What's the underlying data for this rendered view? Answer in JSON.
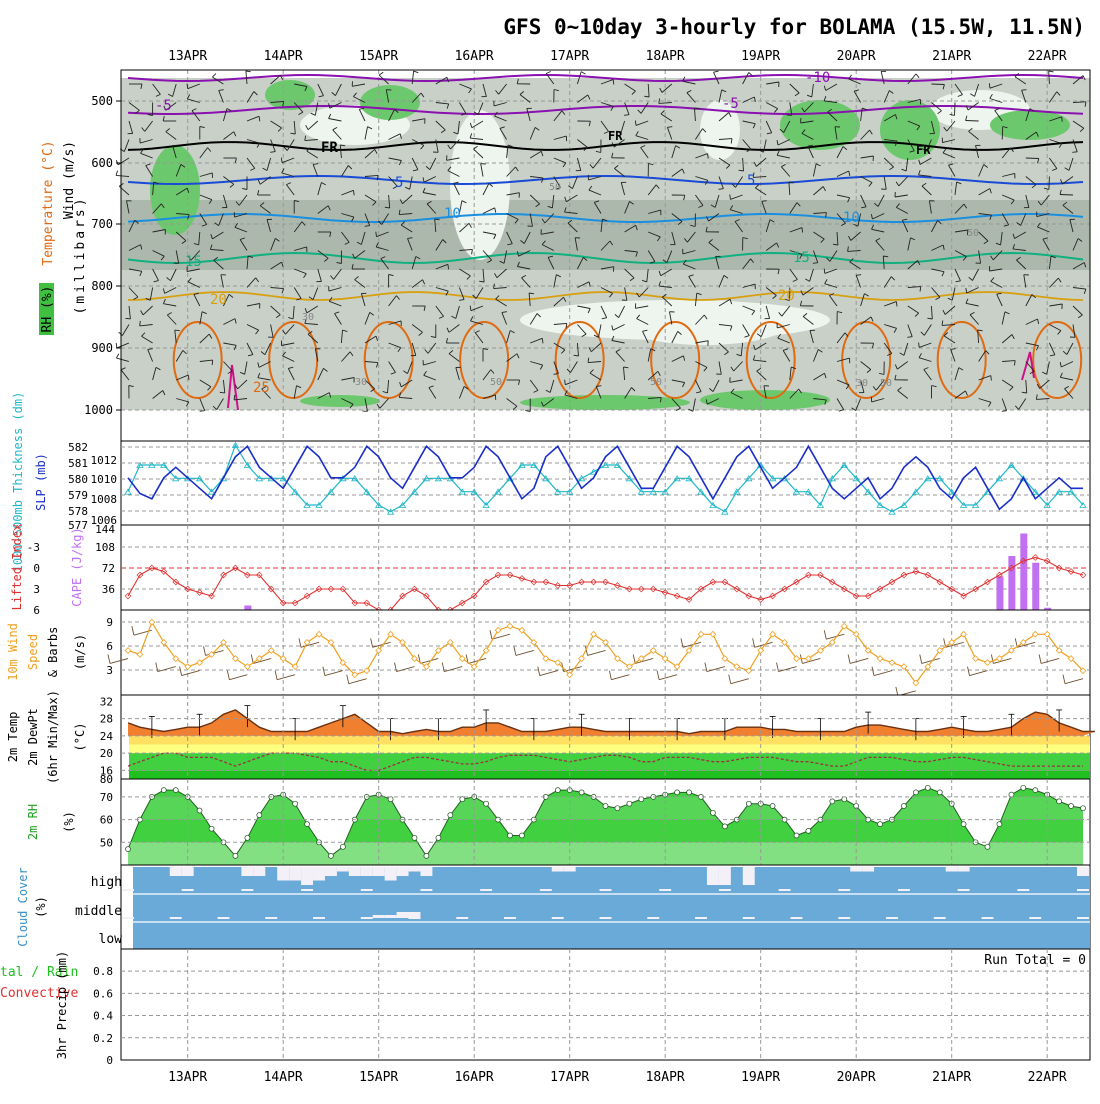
{
  "title": "GFS 0~10day 3-hourly for BOLAMA (15.5W, 11.5N)",
  "colors": {
    "frame": "#000000",
    "grid": "#999999",
    "rh_light": "#c8d0c8",
    "rh_mid": "#9aa89a",
    "rh_high": "#6cc86c",
    "rh_white": "#eef4ee",
    "temp_purple": "#8a10b0",
    "temp_black": "#000000",
    "temp_blue": "#1a4ad6",
    "temp_lightblue": "#1a8fe0",
    "temp_teal": "#10b080",
    "temp_gold": "#d8a010",
    "temp_orange": "#e06a10",
    "temp_magenta": "#d0108a",
    "slp": "#1a2fc8",
    "thickness": "#20b8c8",
    "lifted": "#e03030",
    "cape": "#c070f0",
    "wind_speed": "#f0a020",
    "barb": "#705030",
    "temp_fill": "#f08030",
    "dewpt_line": "#a03040",
    "rh2m_fill": "#40d040",
    "cloud": "#6aaad8",
    "precip_total": "#20c020",
    "precip_conv": "#e03030"
  },
  "time_axis": {
    "date_labels": [
      "13APR",
      "14APR",
      "15APR",
      "16APR",
      "17APR",
      "18APR",
      "19APR",
      "20APR",
      "21APR",
      "22APR"
    ],
    "date_offsets": [
      5,
      13,
      21,
      29,
      37,
      45,
      53,
      61,
      69,
      77
    ],
    "n_steps": 81
  },
  "panels": {
    "upper_air": {
      "ylabel_wind": "Wind (m/s)",
      "ylabel_temp": "Temperature (°C)",
      "ylabel_rh": "RH (%)",
      "ylabel_units": "(millibars)",
      "yticks": [
        "500",
        "600",
        "700",
        "800",
        "900",
        "1000"
      ],
      "isotherm_labels": [
        "-10",
        "-5",
        "FR",
        "5",
        "10",
        "15",
        "20",
        "25"
      ],
      "rh_labels": [
        "50",
        "30"
      ]
    },
    "slp": {
      "ylabel_thickness": "1000-500mb Thickness (dm)",
      "ylabel_slp": "SLP (mb)",
      "left_ticks": [
        "582",
        "581",
        "580",
        "579",
        "578",
        "577"
      ],
      "right_ticks": [
        "1012",
        "1010",
        "1008",
        "1006"
      ]
    },
    "lifted": {
      "ylabel_li": "Lifted Index",
      "ylabel_cape": "CAPE (J/kg)",
      "left_ticks": [
        "-3",
        "0",
        "3",
        "6"
      ],
      "right_ticks": [
        "144",
        "108",
        "72",
        "36"
      ]
    },
    "wind10m": {
      "ylabel": "10m Wind",
      "ylabel2": "Speed",
      "ylabel3": "& Barbs",
      "ylabel_units": "(m/s)",
      "yticks": [
        "9",
        "6",
        "3"
      ]
    },
    "temp2m": {
      "ylabel1": "2m Temp",
      "ylabel2": "2m DewPt",
      "ylabel3": "(6hr Min/Max)",
      "ylabel_units": "(°C)",
      "yticks": [
        "32",
        "28",
        "24",
        "20",
        "16",
        "80"
      ]
    },
    "rh2m": {
      "ylabel": "2m RH",
      "ylabel_units": "(%)",
      "yticks": [
        "70",
        "60",
        "50"
      ]
    },
    "cloud": {
      "ylabel": "Cloud Cover",
      "ylabel_units": "(%)",
      "levels": [
        "high",
        "middle",
        "low"
      ]
    },
    "precip": {
      "ylabel1": "tal / Rain",
      "ylabel2": "Convective",
      "ylabel3": "3hr Precip (mm)",
      "yticks": [
        "0.8",
        "0.6",
        "0.4",
        "0.2",
        "0"
      ],
      "run_total": "Run Total = 0"
    }
  },
  "chart_data": [
    {
      "type": "line",
      "title": "1000-500mb Thickness (dm) / SLP (mb)",
      "x_unit": "3-hour steps from 12APR 12Z",
      "series": [
        {
          "name": "SLP (mb)",
          "ylim": [
            1006,
            1013
          ],
          "values": [
            1010,
            1008.5,
            1008,
            1010,
            1011,
            1010,
            1009,
            1008,
            1010,
            1012,
            1013,
            1011,
            1010,
            1009,
            1011,
            1013,
            1012,
            1010,
            1010,
            1011,
            1013,
            1012,
            1010,
            1009,
            1011,
            1013,
            1012,
            1010,
            1010,
            1011,
            1013,
            1012,
            1010,
            1008,
            1009,
            1012,
            1013,
            1011,
            1009,
            1010,
            1012,
            1013,
            1011,
            1009,
            1009,
            1011,
            1013,
            1012,
            1010,
            1008,
            1010,
            1012,
            1013,
            1011,
            1009,
            1010,
            1011,
            1013,
            1011,
            1009,
            1008,
            1009,
            1010,
            1008,
            1009,
            1011,
            1012,
            1011,
            1009,
            1008,
            1010,
            1011,
            1009,
            1007,
            1008,
            1010,
            1008,
            1009,
            1010,
            1009,
            1009
          ]
        },
        {
          "name": "1000-500mb Thickness (dm)",
          "ylim": [
            577,
            582.5
          ],
          "values": [
            579,
            581,
            581,
            581,
            580,
            580,
            580,
            579,
            580,
            582.5,
            581,
            580,
            580,
            580,
            579,
            578,
            578,
            579,
            580,
            580,
            579,
            578,
            577.5,
            578,
            579,
            580,
            580,
            580,
            579,
            579,
            578,
            579,
            580,
            581,
            581,
            580,
            579,
            579,
            580,
            580.5,
            581,
            581,
            580,
            579,
            579,
            579,
            580,
            580,
            579,
            578,
            577.5,
            579,
            580,
            581,
            580,
            580,
            579,
            579,
            578,
            580,
            581,
            580,
            579,
            578,
            577.5,
            578,
            579,
            580,
            580,
            579,
            578,
            578,
            579,
            580,
            581,
            580,
            579,
            578,
            579,
            579,
            578
          ]
        }
      ]
    },
    {
      "type": "line",
      "title": "Lifted Index / CAPE (J/kg)",
      "x_unit": "3-hour steps from 12APR 12Z",
      "series": [
        {
          "name": "Lifted Index",
          "ylim": [
            6,
            -5
          ],
          "values": [
            4,
            1,
            0,
            0.5,
            2,
            3,
            3.5,
            4,
            1,
            0,
            1,
            1,
            3,
            5,
            5,
            4,
            3,
            3,
            3,
            5,
            5,
            6,
            6,
            4,
            3,
            4,
            6,
            6,
            5,
            4,
            2,
            1,
            1,
            1.5,
            2,
            2,
            2.5,
            2.5,
            2,
            2,
            2,
            2.5,
            3,
            3,
            3,
            3.5,
            4,
            4.5,
            3,
            2,
            2,
            3,
            4,
            4.5,
            4,
            3,
            2,
            1,
            1,
            2,
            3,
            4,
            4,
            3,
            2,
            1,
            0.5,
            1,
            2,
            3,
            4,
            3,
            2,
            1,
            0,
            -1,
            -1.5,
            -1,
            0,
            0.5,
            1
          ]
        },
        {
          "name": "CAPE (J/kg)",
          "ylim": [
            0,
            144
          ],
          "bars": [
            [
              10,
              8
            ],
            [
              73,
              60
            ],
            [
              74,
              96
            ],
            [
              75,
              136
            ],
            [
              76,
              84
            ],
            [
              77,
              4
            ]
          ]
        }
      ]
    },
    {
      "type": "line",
      "title": "10m Wind Speed (m/s)",
      "x_unit": "3-hour steps from 12APR 12Z",
      "ylim": [
        1,
        10
      ],
      "values": [
        6,
        5.5,
        9.5,
        7,
        5,
        4,
        4.5,
        5.5,
        7,
        5,
        4,
        5,
        6,
        5,
        4,
        7,
        8,
        7,
        4.5,
        3,
        3.5,
        6,
        8,
        7,
        5,
        4,
        6,
        7,
        5,
        4,
        6,
        8.5,
        9,
        8.5,
        7,
        5,
        4.5,
        3,
        5,
        8,
        7,
        5,
        4,
        5,
        6,
        5,
        4,
        6,
        8,
        8,
        5,
        4,
        3.5,
        6,
        8,
        7,
        5,
        5,
        6,
        7,
        9,
        8,
        6,
        5,
        4.5,
        4,
        2,
        4,
        6,
        7,
        8,
        5,
        4.5,
        5,
        6,
        7,
        8,
        8,
        6,
        5,
        3.5
      ]
    },
    {
      "type": "line",
      "title": "2m Temp / 2m DewPt (°C)",
      "x_unit": "3-hour steps from 12APR 12Z",
      "ylim": [
        14,
        33
      ],
      "series": [
        {
          "name": "2m Temp",
          "values": [
            27,
            26,
            25.5,
            25,
            25.5,
            26,
            26,
            27,
            29,
            30,
            28,
            26,
            25,
            25,
            25,
            25,
            26,
            27,
            28,
            29,
            27,
            25,
            25,
            24.5,
            25,
            25.5,
            25,
            25,
            26,
            26,
            27,
            27,
            26,
            25,
            25,
            25,
            25.5,
            26,
            26,
            25.5,
            25,
            25,
            25,
            25,
            25,
            25,
            25,
            24.5,
            25,
            25,
            25,
            26,
            26,
            26,
            25.5,
            25.5,
            25,
            25,
            25,
            25,
            25,
            26,
            26.5,
            26.5,
            26,
            25.5,
            25,
            25,
            25.5,
            26,
            25.5,
            25,
            25,
            25.5,
            26,
            28,
            29.5,
            29,
            27,
            26,
            25,
            25
          ]
        },
        {
          "name": "2m DewPt",
          "values": [
            17,
            18,
            19,
            20,
            20,
            19,
            19,
            19,
            18,
            17,
            18,
            19,
            20,
            20,
            20,
            19.5,
            19,
            18,
            18,
            17,
            16,
            16,
            17,
            18,
            19,
            19,
            18.5,
            18,
            17.5,
            17.5,
            18,
            19,
            19.5,
            19.5,
            19.5,
            19,
            18.5,
            18,
            18.5,
            19,
            19.5,
            19.5,
            19,
            18,
            18,
            19,
            19,
            19,
            18.5,
            18,
            18,
            18.5,
            19,
            19,
            19,
            18.5,
            18,
            18,
            17.5,
            17,
            17,
            18,
            19,
            19,
            19,
            18.5,
            18,
            18,
            18.5,
            19,
            19,
            18.5,
            18,
            17.5,
            17,
            17,
            17,
            17,
            17,
            17,
            17
          ]
        }
      ]
    },
    {
      "type": "area",
      "title": "2m RH (%)",
      "x_unit": "3-hour steps from 12APR 12Z",
      "ylim": [
        40,
        77
      ],
      "values": [
        47,
        60,
        70,
        73,
        73,
        70,
        64,
        56,
        50,
        44,
        52,
        62,
        70,
        71,
        67,
        58,
        50,
        44,
        48,
        60,
        70,
        71,
        69,
        60,
        52,
        44,
        52,
        62,
        69,
        70,
        67,
        60,
        53,
        53,
        60,
        70,
        73,
        73,
        72,
        70,
        66,
        65,
        67,
        69,
        70,
        71,
        72,
        72,
        70,
        63,
        57,
        60,
        67,
        67,
        66,
        60,
        53,
        55,
        60,
        68,
        69,
        66,
        60,
        58,
        60,
        66,
        72,
        74,
        72,
        67,
        58,
        50,
        48,
        58,
        71,
        74,
        73,
        71,
        68,
        66,
        65
      ]
    },
    {
      "type": "bar",
      "title": "Cloud Cover (%)",
      "x_unit": "3-hour steps from 12APR 12Z",
      "series": [
        {
          "name": "high",
          "values": [
            0,
            0,
            0,
            0,
            10,
            10,
            0,
            0,
            0,
            0,
            10,
            10,
            0,
            15,
            15,
            20,
            15,
            10,
            5,
            10,
            10,
            10,
            15,
            10,
            5,
            10,
            0,
            0,
            0,
            0,
            0,
            0,
            0,
            0,
            0,
            0,
            5,
            5,
            0,
            0,
            0,
            0,
            0,
            0,
            0,
            0,
            0,
            0,
            0,
            20,
            20,
            0,
            20,
            0,
            0,
            0,
            0,
            0,
            0,
            0,
            0,
            5,
            5,
            0,
            0,
            0,
            0,
            0,
            0,
            5,
            5,
            0,
            0,
            0,
            0,
            0,
            0,
            0,
            0,
            0,
            10
          ]
        },
        {
          "name": "middle",
          "values": [
            0,
            0,
            0,
            0,
            0,
            0,
            0,
            0,
            0,
            0,
            0,
            0,
            0,
            0,
            0,
            0,
            0,
            0,
            0,
            0,
            0,
            5,
            5,
            10,
            10,
            0,
            0,
            0,
            0,
            0,
            0,
            0,
            0,
            0,
            0,
            0,
            0,
            0,
            0,
            0,
            0,
            0,
            0,
            0,
            0,
            0,
            0,
            0,
            0,
            0,
            0,
            0,
            0,
            0,
            0,
            0,
            0,
            0,
            0,
            0,
            0,
            0,
            0,
            0,
            0,
            0,
            0,
            0,
            0,
            0,
            0,
            0,
            0,
            0,
            0,
            0,
            0,
            0,
            0,
            0,
            0
          ]
        },
        {
          "name": "low",
          "values": [
            0,
            0,
            0,
            0,
            0,
            0,
            0,
            0,
            0,
            0,
            0,
            0,
            0,
            0,
            0,
            0,
            0,
            0,
            0,
            0,
            0,
            0,
            0,
            0,
            0,
            0,
            0,
            0,
            0,
            0,
            0,
            0,
            0,
            0,
            0,
            0,
            0,
            0,
            0,
            0,
            0,
            0,
            0,
            0,
            0,
            0,
            0,
            0,
            0,
            0,
            0,
            0,
            0,
            0,
            0,
            0,
            0,
            0,
            0,
            0,
            0,
            0,
            0,
            0,
            0,
            0,
            0,
            0,
            0,
            0,
            0,
            0,
            0,
            0,
            0,
            0,
            0,
            0,
            0,
            0,
            0
          ]
        }
      ]
    },
    {
      "type": "bar",
      "title": "3hr Precip (mm)",
      "ylim": [
        0,
        0.9
      ],
      "values": []
    }
  ]
}
